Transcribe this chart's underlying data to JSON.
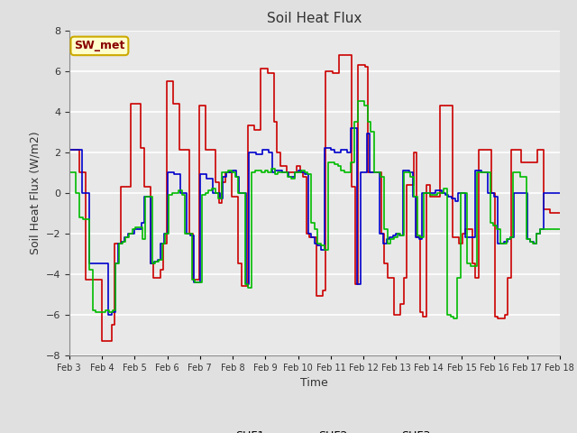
{
  "title": "Soil Heat Flux",
  "xlabel": "Time",
  "ylabel": "Soil Heat Flux (W/m2)",
  "ylim": [
    -8,
    8
  ],
  "yticks": [
    -8,
    -6,
    -4,
    -2,
    0,
    2,
    4,
    6,
    8
  ],
  "background_color": "#e0e0e0",
  "axes_background": "#e8e8e8",
  "grid_color": "white",
  "annotation_text": "SW_met",
  "annotation_bg": "#ffffcc",
  "annotation_border": "#ccaa00",
  "annotation_text_color": "#880000",
  "series": {
    "SHF1": {
      "color": "#cc0000",
      "linewidth": 1.2
    },
    "SHF2": {
      "color": "#0000cc",
      "linewidth": 1.2
    },
    "SHF3": {
      "color": "#00bb00",
      "linewidth": 1.2
    }
  },
  "x_tick_labels": [
    "Feb 3",
    "Feb 4",
    "Feb 5",
    "Feb 6",
    "Feb 7",
    "Feb 8",
    "Feb 9",
    "Feb 10",
    "Feb 11",
    "Feb 12",
    "Feb 13",
    "Feb 14",
    "Feb 15",
    "Feb 16",
    "Feb 17",
    "Feb 18"
  ],
  "SHF1": [
    2.1,
    2.1,
    2.1,
    1.0,
    1.0,
    -4.3,
    -4.3,
    -4.3,
    -4.3,
    -4.3,
    -7.3,
    -7.3,
    -7.3,
    -6.5,
    -2.5,
    -2.5,
    0.3,
    0.3,
    0.3,
    4.4,
    4.4,
    4.4,
    2.2,
    0.3,
    0.3,
    -3.5,
    -4.2,
    -4.2,
    -3.8,
    -2.5,
    5.5,
    5.5,
    4.4,
    4.4,
    2.1,
    2.1,
    2.1,
    -2.0,
    -4.3,
    -4.3,
    4.3,
    4.3,
    2.1,
    2.1,
    2.1,
    0.5,
    -0.5,
    0.5,
    1.0,
    1.0,
    -0.2,
    -0.2,
    -3.5,
    -4.6,
    -4.6,
    3.3,
    3.3,
    3.1,
    3.1,
    6.1,
    6.1,
    5.9,
    5.9,
    3.5,
    2.0,
    1.3,
    1.3,
    1.0,
    1.0,
    1.0,
    1.3,
    1.0,
    0.8,
    -2.0,
    -2.2,
    -2.2,
    -5.1,
    -5.1,
    -4.8,
    6.0,
    6.0,
    5.9,
    5.9,
    6.8,
    6.8,
    6.8,
    6.8,
    0.3,
    -4.5,
    6.3,
    6.3,
    6.2,
    1.0,
    1.0,
    1.0,
    1.0,
    -2.0,
    -3.5,
    -4.2,
    -4.2,
    -6.0,
    -6.0,
    -5.5,
    -4.2,
    0.4,
    0.4,
    2.0,
    -2.2,
    -5.9,
    -6.1,
    0.4,
    -0.2,
    -0.2,
    -0.2,
    4.3,
    4.3,
    4.3,
    4.3,
    -2.2,
    -2.2,
    -2.5,
    -2.0,
    -1.8,
    -1.8,
    -3.5,
    -4.2,
    2.1,
    2.1,
    2.1,
    2.1,
    0.0,
    -6.1,
    -6.2,
    -6.2,
    -6.0,
    -4.2,
    2.1,
    2.1,
    2.1,
    1.5,
    1.5,
    1.5,
    1.5,
    1.5,
    2.1,
    2.1,
    -0.8,
    -0.8,
    -1.0,
    -1.0,
    -1.0,
    -1.0
  ],
  "SHF2": [
    2.1,
    2.1,
    2.1,
    2.1,
    0.0,
    0.0,
    -3.5,
    -3.5,
    -3.5,
    -3.5,
    -3.5,
    -3.5,
    -6.0,
    -5.9,
    -3.5,
    -2.5,
    -2.4,
    -2.2,
    -2.0,
    -2.0,
    -1.8,
    -1.8,
    -1.5,
    -0.2,
    -0.2,
    -3.5,
    -3.4,
    -3.3,
    -2.5,
    -2.0,
    1.0,
    1.0,
    0.9,
    0.9,
    0.0,
    0.0,
    -2.0,
    -2.1,
    -4.4,
    -4.4,
    0.9,
    0.9,
    0.7,
    0.7,
    0.0,
    0.0,
    -0.3,
    0.8,
    1.0,
    1.0,
    1.1,
    0.8,
    0.0,
    0.0,
    -4.5,
    2.0,
    2.0,
    1.9,
    1.9,
    2.1,
    2.1,
    2.0,
    1.0,
    1.1,
    1.1,
    1.0,
    1.0,
    0.8,
    0.8,
    1.0,
    1.1,
    1.0,
    0.9,
    -2.0,
    -2.2,
    -2.5,
    -2.6,
    -2.8,
    2.2,
    2.2,
    2.1,
    2.0,
    2.0,
    2.1,
    2.1,
    2.0,
    3.2,
    3.2,
    -4.5,
    1.0,
    1.0,
    2.9,
    1.0,
    1.0,
    1.0,
    -2.0,
    -2.5,
    -2.3,
    -2.2,
    -2.1,
    -2.0,
    -2.1,
    1.1,
    1.1,
    1.0,
    -0.2,
    -2.2,
    -2.3,
    0.0,
    0.0,
    0.0,
    0.0,
    0.1,
    0.1,
    0.0,
    -0.1,
    -0.2,
    -0.3,
    -0.4,
    0.0,
    0.0,
    -2.2,
    -2.2,
    -2.2,
    1.1,
    1.1,
    1.0,
    1.0,
    0.0,
    0.0,
    -0.2,
    -2.5,
    -2.5,
    -2.4,
    -2.3,
    -2.2,
    0.0,
    0.0,
    0.0,
    0.0,
    -2.3,
    -2.4,
    -2.5,
    -2.0,
    -1.8,
    0.0,
    0.0,
    0.0,
    0.0,
    0.0,
    0.0
  ],
  "SHF3": [
    1.0,
    1.0,
    0.0,
    -1.2,
    -1.3,
    -1.3,
    -3.8,
    -5.8,
    -5.9,
    -5.9,
    -5.9,
    -5.8,
    -5.9,
    -5.8,
    -3.5,
    -2.5,
    -2.4,
    -2.2,
    -2.0,
    -1.8,
    -1.7,
    -1.7,
    -2.3,
    -0.2,
    -0.2,
    -3.5,
    -3.4,
    -3.3,
    -2.5,
    -2.0,
    -0.1,
    0.0,
    0.0,
    0.1,
    -0.1,
    -2.0,
    -2.0,
    -4.3,
    -4.4,
    -4.4,
    -0.1,
    0.0,
    0.1,
    0.2,
    0.0,
    -0.3,
    1.0,
    1.0,
    1.1,
    1.0,
    0.8,
    0.0,
    0.0,
    -4.5,
    -4.7,
    1.0,
    1.1,
    1.1,
    1.0,
    1.1,
    1.0,
    1.2,
    0.9,
    1.0,
    1.0,
    1.0,
    0.8,
    0.7,
    1.0,
    1.0,
    1.1,
    1.0,
    0.9,
    -1.5,
    -1.8,
    -2.5,
    -2.6,
    -2.8,
    1.5,
    1.5,
    1.4,
    1.3,
    1.1,
    1.0,
    1.0,
    1.5,
    3.5,
    4.5,
    4.5,
    4.3,
    3.5,
    3.0,
    1.0,
    1.0,
    0.8,
    -1.8,
    -2.5,
    -2.3,
    -2.2,
    -2.0,
    -2.1,
    1.0,
    1.0,
    0.8,
    -0.2,
    -2.1,
    -2.2,
    0.0,
    0.0,
    -0.1,
    -0.1,
    0.0,
    0.0,
    0.2,
    -6.0,
    -6.1,
    -6.2,
    -4.2,
    0.0,
    0.0,
    -3.5,
    -3.6,
    -3.6,
    1.0,
    1.0,
    1.0,
    1.0,
    -1.5,
    -1.6,
    -1.8,
    -2.5,
    -2.5,
    -2.3,
    -2.2,
    1.0,
    1.0,
    0.8,
    0.8,
    -2.3,
    -2.4,
    -2.5,
    -2.0,
    -1.8,
    -1.8,
    -1.8,
    -1.8,
    -1.8,
    -1.8,
    -1.8
  ]
}
